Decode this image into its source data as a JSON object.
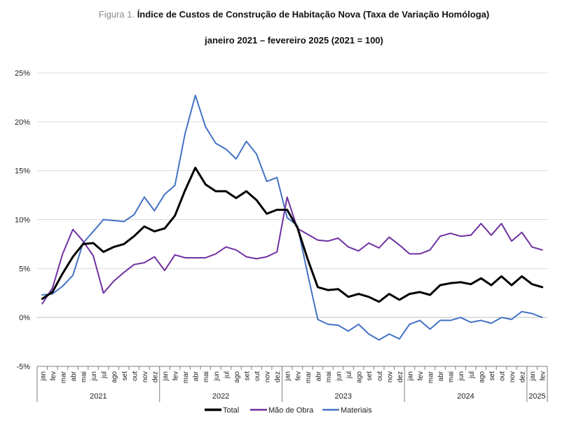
{
  "figure_label": "Figura 1.",
  "title": "Índice de Custos de Construção de Habitação Nova (Taxa de Variação Homóloga)",
  "subtitle": "janeiro 2021 – fevereiro 2025 (2021 = 100)",
  "colors": {
    "Total": "#000000",
    "Mão de Obra": "#7030a0",
    "Materiais": "#4472c4",
    "grid": "#d9d9d9",
    "axis": "#7f7f7f"
  },
  "chart_data": {
    "type": "line",
    "title": "Índice de Custos de Construção de Habitação Nova (Taxa de Variação Homóloga)",
    "subtitle": "janeiro 2021 – fevereiro 2025 (2021 = 100)",
    "xlabel": "",
    "ylabel": "",
    "ylim": [
      -5,
      25
    ],
    "yticks": [
      -5,
      0,
      5,
      10,
      15,
      20,
      25
    ],
    "ytick_labels": [
      "-5%",
      "0%",
      "5%",
      "10%",
      "15%",
      "20%",
      "25%"
    ],
    "grid": true,
    "legend_position": "bottom",
    "months": [
      "jan",
      "fev",
      "mar",
      "abr",
      "mai",
      "jun",
      "jul",
      "ago",
      "set",
      "out",
      "nov",
      "dez",
      "jan",
      "fev",
      "mar",
      "abr",
      "mai",
      "jun",
      "jul",
      "ago",
      "set",
      "out",
      "nov",
      "dez",
      "jan",
      "fev",
      "mar",
      "abr",
      "mai",
      "jun",
      "jul",
      "ago",
      "set",
      "out",
      "nov",
      "dez",
      "jan",
      "fev",
      "mar",
      "abr",
      "mai",
      "jun",
      "jul",
      "ago",
      "set",
      "out",
      "nov",
      "dez",
      "jan",
      "fev"
    ],
    "years": [
      {
        "label": "2021",
        "start": 0,
        "count": 12
      },
      {
        "label": "2022",
        "start": 12,
        "count": 12
      },
      {
        "label": "2023",
        "start": 24,
        "count": 12
      },
      {
        "label": "2024",
        "start": 36,
        "count": 12
      },
      {
        "label": "2025",
        "start": 48,
        "count": 2
      }
    ],
    "series": [
      {
        "name": "Total",
        "values": [
          1.9,
          2.6,
          4.5,
          6.2,
          7.5,
          7.6,
          6.7,
          7.2,
          7.5,
          8.3,
          9.3,
          8.8,
          9.1,
          10.4,
          13.0,
          15.3,
          13.6,
          12.9,
          12.9,
          12.2,
          12.9,
          12.0,
          10.6,
          11.0,
          11.0,
          9.2,
          6.0,
          3.1,
          2.8,
          2.9,
          2.1,
          2.4,
          2.1,
          1.6,
          2.4,
          1.8,
          2.4,
          2.6,
          2.3,
          3.3,
          3.5,
          3.6,
          3.4,
          4.0,
          3.3,
          4.2,
          3.3,
          4.2,
          3.4,
          3.1
        ]
      },
      {
        "name": "Mão de Obra",
        "values": [
          1.4,
          3.0,
          6.5,
          9.0,
          7.8,
          6.3,
          2.5,
          3.7,
          4.6,
          5.4,
          5.6,
          6.2,
          4.8,
          6.4,
          6.1,
          6.1,
          6.1,
          6.5,
          7.2,
          6.9,
          6.2,
          6.0,
          6.2,
          6.7,
          12.3,
          9.1,
          8.5,
          7.9,
          7.8,
          8.1,
          7.2,
          6.8,
          7.6,
          7.1,
          8.2,
          7.4,
          6.5,
          6.5,
          6.9,
          8.3,
          8.6,
          8.3,
          8.4,
          9.6,
          8.4,
          9.6,
          7.8,
          8.7,
          7.2,
          6.9
        ]
      },
      {
        "name": "Materiais",
        "values": [
          2.3,
          2.4,
          3.2,
          4.3,
          7.6,
          8.8,
          10.0,
          9.9,
          9.8,
          10.5,
          12.3,
          10.9,
          12.6,
          13.5,
          18.8,
          22.7,
          19.5,
          17.8,
          17.2,
          16.2,
          18.0,
          16.7,
          13.9,
          14.3,
          10.2,
          9.4,
          4.5,
          -0.2,
          -0.7,
          -0.8,
          -1.4,
          -0.7,
          -1.7,
          -2.3,
          -1.7,
          -2.2,
          -0.7,
          -0.3,
          -1.2,
          -0.3,
          -0.3,
          0.0,
          -0.5,
          -0.3,
          -0.6,
          0.0,
          -0.2,
          0.6,
          0.4,
          0.0
        ]
      }
    ]
  }
}
